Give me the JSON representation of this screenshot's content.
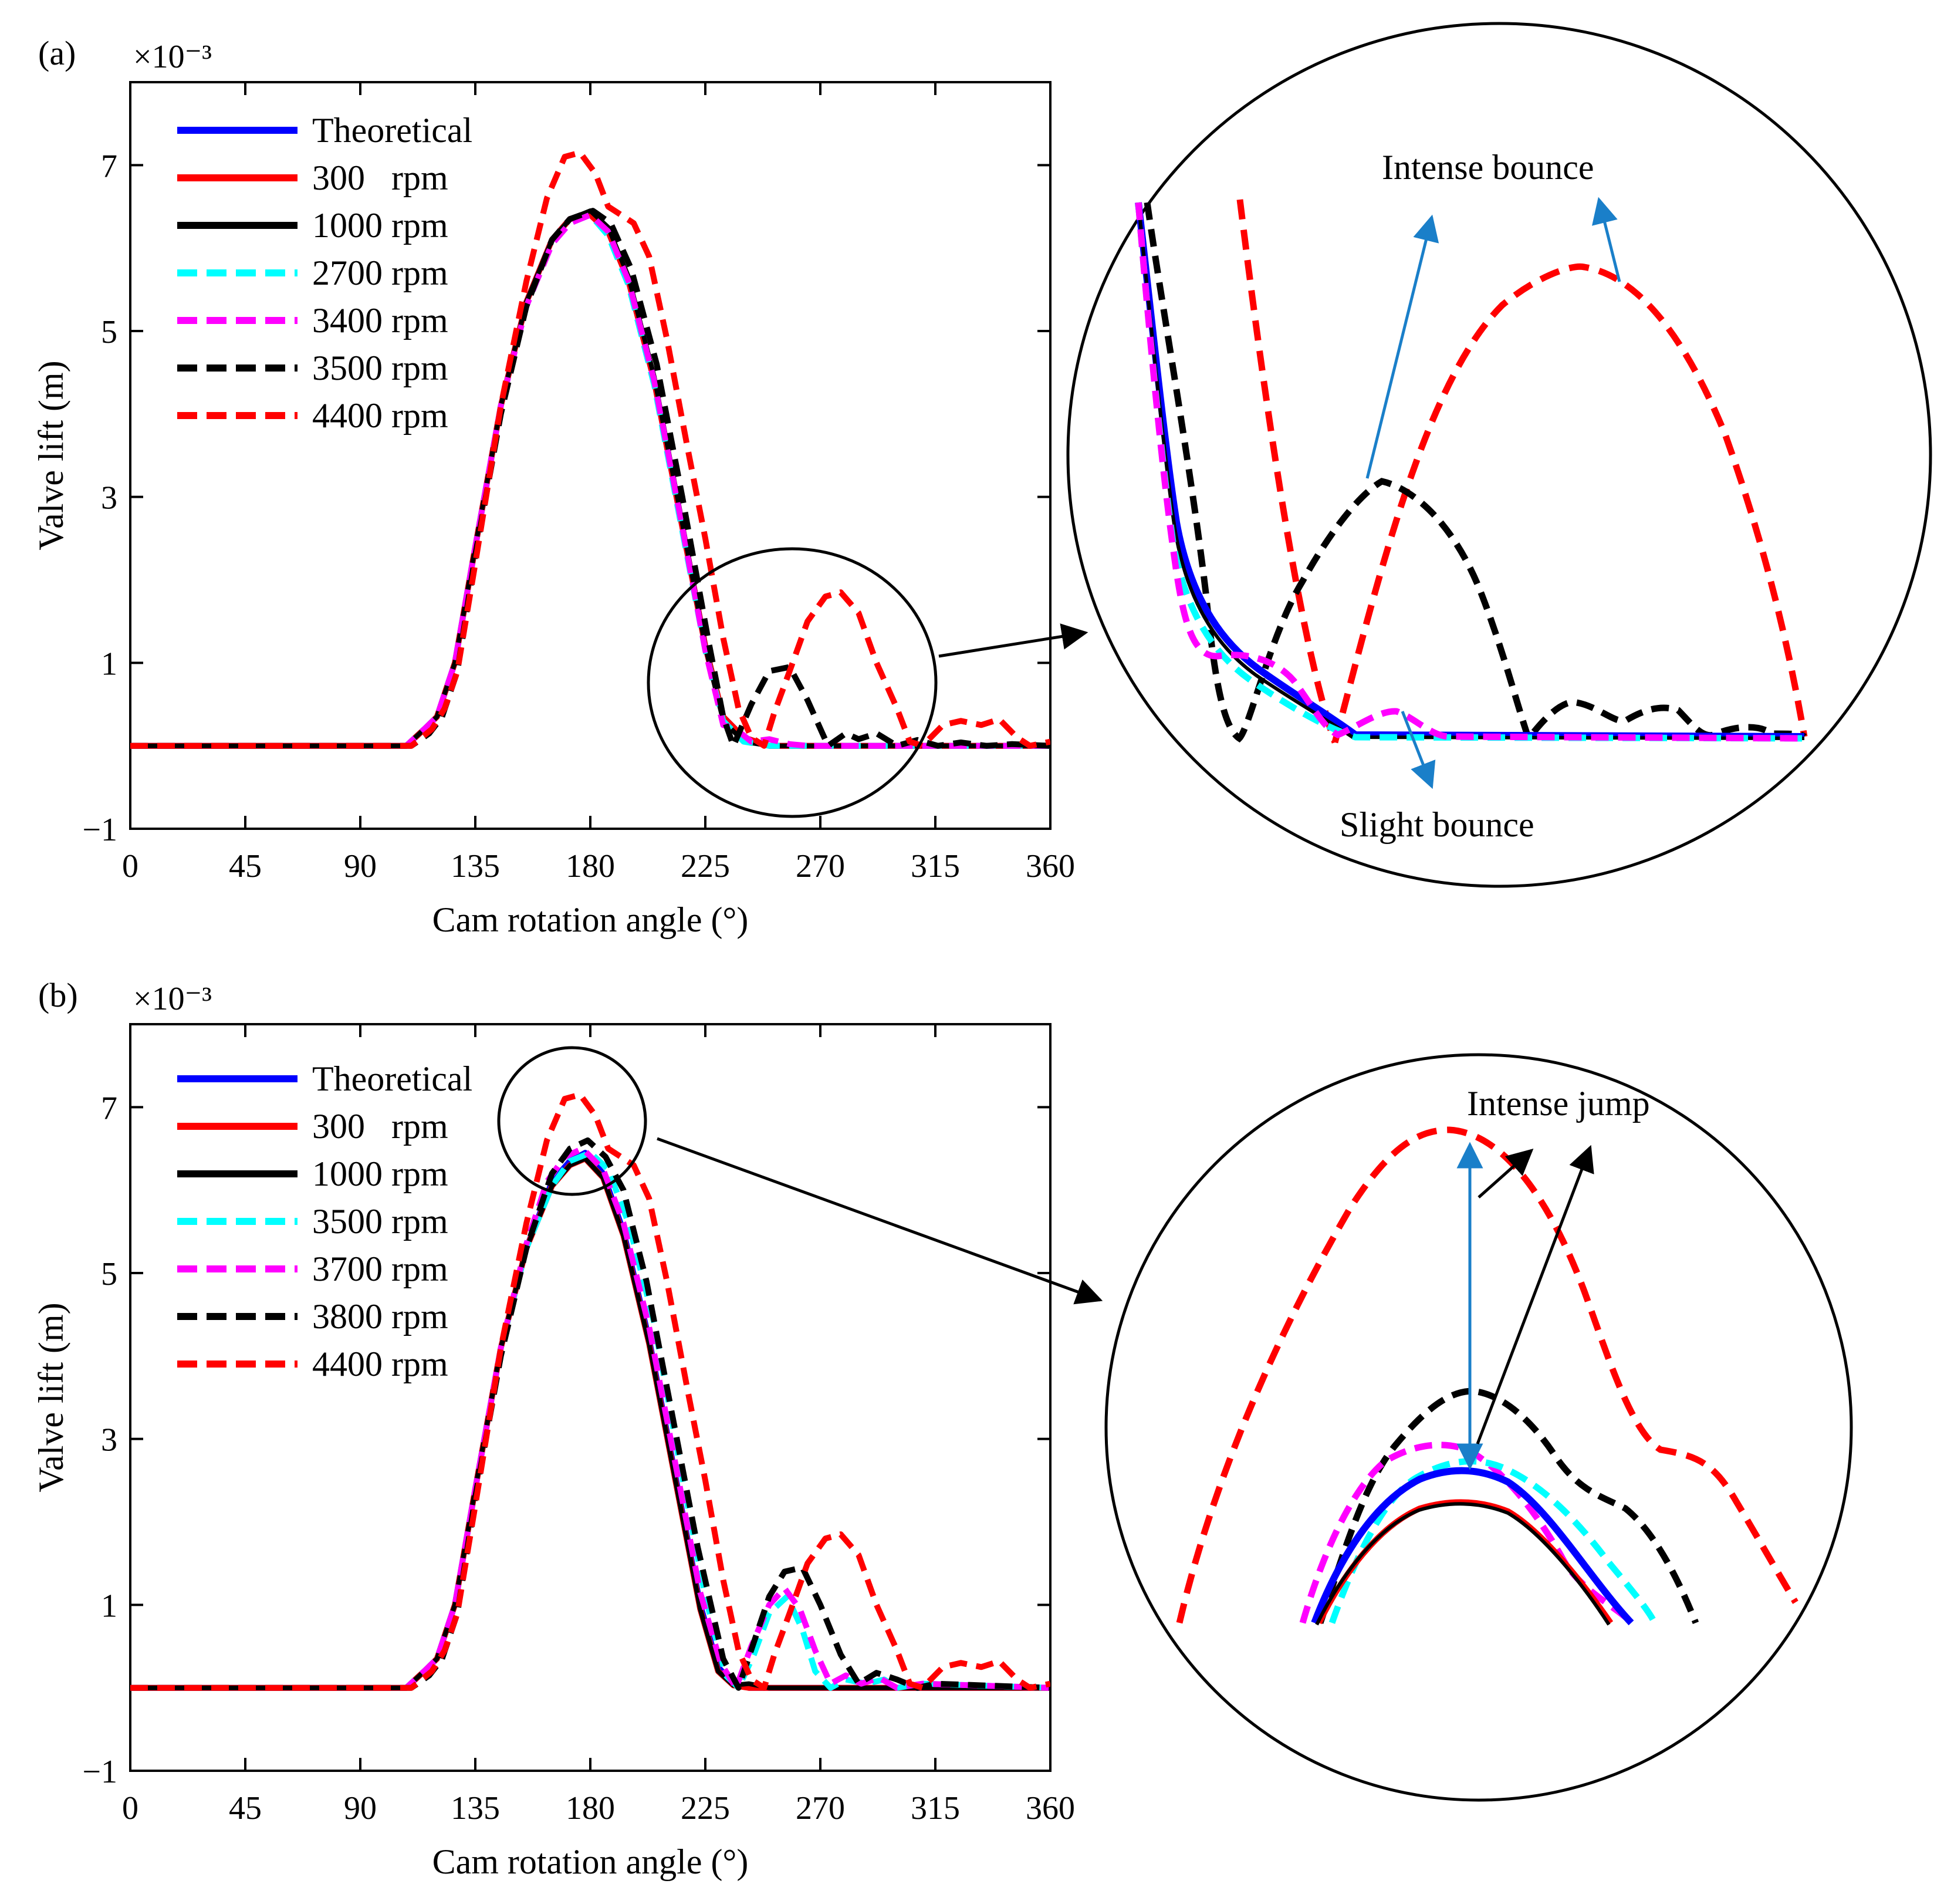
{
  "chart_data": [
    {
      "type": "line",
      "panel_label": "(a)",
      "xlabel": "Cam rotation angle (°)",
      "ylabel": "Valve lift (m)",
      "y_exponent": "×10⁻³",
      "xlim": [
        0,
        360
      ],
      "ylim": [
        -1,
        8
      ],
      "x_ticks": [
        "0",
        "45",
        "90",
        "135",
        "180",
        "225",
        "270",
        "315",
        "360"
      ],
      "y_ticks": [
        "−1",
        "1",
        "3",
        "5",
        "7"
      ],
      "x_tick_values": [
        0,
        45,
        90,
        135,
        180,
        225,
        270,
        315,
        360
      ],
      "y_tick_values": [
        -1,
        1,
        3,
        5,
        7
      ],
      "grid": false,
      "legend_position": "top-left",
      "series": [
        {
          "name": "Theoretical",
          "color": "#0000ff",
          "dash": "solid",
          "x": [
            0,
            108,
            115,
            120,
            127,
            135,
            145,
            155,
            165,
            172,
            180,
            187,
            195,
            205,
            215,
            225,
            232,
            240,
            250,
            360
          ],
          "y": [
            0,
            0,
            0.2,
            0.35,
            1.0,
            2.4,
            4.1,
            5.35,
            6.1,
            6.35,
            6.4,
            6.2,
            5.6,
            4.4,
            2.8,
            1.2,
            0.35,
            0.1,
            0,
            0
          ]
        },
        {
          "name": "300   rpm",
          "color": "#ff0000",
          "dash": "solid",
          "x": [
            0,
            108,
            115,
            120,
            127,
            135,
            145,
            155,
            165,
            172,
            180,
            187,
            195,
            205,
            215,
            225,
            232,
            240,
            250,
            360
          ],
          "y": [
            0,
            0,
            0.2,
            0.35,
            1.0,
            2.4,
            4.1,
            5.35,
            6.1,
            6.35,
            6.4,
            6.2,
            5.6,
            4.4,
            2.8,
            1.2,
            0.35,
            0.1,
            0,
            0
          ]
        },
        {
          "name": "1000 rpm",
          "color": "#000000",
          "dash": "solid",
          "x": [
            0,
            108,
            115,
            120,
            127,
            135,
            145,
            155,
            165,
            172,
            180,
            187,
            195,
            205,
            215,
            225,
            232,
            240,
            250,
            360
          ],
          "y": [
            0,
            0,
            0.2,
            0.35,
            1.0,
            2.4,
            4.1,
            5.35,
            6.1,
            6.35,
            6.45,
            6.25,
            5.65,
            4.45,
            2.85,
            1.2,
            0.3,
            0.05,
            0,
            0
          ]
        },
        {
          "name": "2700 rpm",
          "color": "#00ffff",
          "dash": "dash",
          "x": [
            0,
            108,
            115,
            120,
            127,
            135,
            145,
            155,
            165,
            172,
            180,
            187,
            195,
            205,
            215,
            225,
            232,
            240,
            250,
            360
          ],
          "y": [
            0,
            0,
            0.2,
            0.35,
            1.0,
            2.4,
            4.1,
            5.3,
            6.05,
            6.3,
            6.4,
            6.15,
            5.55,
            4.35,
            2.75,
            1.15,
            0.3,
            0.05,
            0,
            0
          ]
        },
        {
          "name": "3400 rpm",
          "color": "#ff00ff",
          "dash": "dash",
          "x": [
            0,
            108,
            115,
            120,
            127,
            135,
            145,
            155,
            165,
            172,
            180,
            187,
            195,
            205,
            215,
            225,
            232,
            237,
            243,
            250,
            258,
            265,
            360
          ],
          "y": [
            0,
            0,
            0.2,
            0.35,
            1.0,
            2.4,
            4.1,
            5.3,
            6.05,
            6.3,
            6.4,
            6.2,
            5.6,
            4.4,
            2.8,
            1.15,
            0.25,
            0.2,
            0.05,
            0.08,
            0.02,
            0,
            0
          ]
        },
        {
          "name": "3500 rpm",
          "color": "#000000",
          "dash": "dash",
          "x": [
            0,
            110,
            117,
            122,
            128,
            135,
            145,
            155,
            165,
            172,
            181,
            188,
            196,
            206,
            216,
            226,
            232,
            236,
            243,
            250,
            258,
            265,
            273,
            280,
            285,
            292,
            300,
            308,
            316,
            325,
            335,
            345,
            360
          ],
          "y": [
            0,
            0,
            0.15,
            0.35,
            0.9,
            2.3,
            4.0,
            5.3,
            6.1,
            6.35,
            6.45,
            6.3,
            5.75,
            4.6,
            3.0,
            1.3,
            0.35,
            0.0,
            0.5,
            0.9,
            0.95,
            0.55,
            0.0,
            0.15,
            0.08,
            0.15,
            0.0,
            0.07,
            0.0,
            0.04,
            0.0,
            0.02,
            0
          ]
        },
        {
          "name": "4400 rpm",
          "color": "#ff0000",
          "dash": "dash",
          "x": [
            0,
            110,
            118,
            123,
            128,
            135,
            145,
            155,
            163,
            170,
            176,
            182,
            187,
            192,
            197,
            203,
            210,
            218,
            225,
            232,
            238,
            243,
            248,
            252,
            258,
            265,
            272,
            278,
            285,
            292,
            300,
            305,
            310,
            318,
            325,
            333,
            340,
            347,
            352,
            360
          ],
          "y": [
            0,
            0,
            0.2,
            0.45,
            0.9,
            2.2,
            4.1,
            5.6,
            6.6,
            7.1,
            7.15,
            6.9,
            6.5,
            6.4,
            6.3,
            5.9,
            4.9,
            3.6,
            2.5,
            1.3,
            0.45,
            0.1,
            0.0,
            0.4,
            0.9,
            1.5,
            1.8,
            1.85,
            1.6,
            1.0,
            0.45,
            0.05,
            0.0,
            0.25,
            0.3,
            0.25,
            0.32,
            0.1,
            0.0,
            0.05
          ]
        }
      ],
      "inset": {
        "annotations": [
          "Intense bounce",
          "Slight bounce"
        ]
      }
    },
    {
      "type": "line",
      "panel_label": "(b)",
      "xlabel": "Cam rotation angle (°)",
      "ylabel": "Valve lift (m)",
      "y_exponent": "×10⁻³",
      "xlim": [
        0,
        360
      ],
      "ylim": [
        -1,
        8
      ],
      "x_ticks": [
        "0",
        "45",
        "90",
        "135",
        "180",
        "225",
        "270",
        "315",
        "360"
      ],
      "y_ticks": [
        "−1",
        "1",
        "3",
        "5",
        "7"
      ],
      "x_tick_values": [
        0,
        45,
        90,
        135,
        180,
        225,
        270,
        315,
        360
      ],
      "y_tick_values": [
        -1,
        1,
        3,
        5,
        7
      ],
      "grid": false,
      "legend_position": "top-left",
      "series": [
        {
          "name": "Theoretical",
          "color": "#0000ff",
          "dash": "solid",
          "x": [
            0,
            108,
            115,
            120,
            127,
            135,
            145,
            155,
            165,
            172,
            178,
            185,
            193,
            203,
            213,
            223,
            230,
            236,
            242,
            360
          ],
          "y": [
            0,
            0,
            0.2,
            0.35,
            1.0,
            2.4,
            4.1,
            5.3,
            6.1,
            6.35,
            6.45,
            6.2,
            5.5,
            4.2,
            2.6,
            1.0,
            0.25,
            0.05,
            0,
            0
          ]
        },
        {
          "name": "300   rpm",
          "color": "#ff0000",
          "dash": "solid",
          "x": [
            0,
            108,
            115,
            120,
            127,
            135,
            145,
            155,
            165,
            172,
            178,
            185,
            193,
            203,
            213,
            223,
            230,
            236,
            242,
            360
          ],
          "y": [
            0,
            0,
            0.2,
            0.35,
            1.0,
            2.4,
            4.1,
            5.3,
            6.05,
            6.3,
            6.38,
            6.15,
            5.45,
            4.15,
            2.55,
            0.95,
            0.2,
            0.03,
            0,
            0
          ]
        },
        {
          "name": "1000 rpm",
          "color": "#000000",
          "dash": "solid",
          "x": [
            0,
            108,
            115,
            120,
            127,
            135,
            145,
            155,
            165,
            172,
            178,
            185,
            193,
            203,
            213,
            223,
            230,
            236,
            242,
            250,
            360
          ],
          "y": [
            0,
            0,
            0.2,
            0.35,
            1.0,
            2.4,
            4.1,
            5.3,
            6.05,
            6.3,
            6.38,
            6.15,
            5.45,
            4.15,
            2.55,
            0.95,
            0.2,
            0.03,
            0.05,
            0,
            0
          ]
        },
        {
          "name": "3500 rpm",
          "color": "#00ffff",
          "dash": "dash",
          "x": [
            0,
            108,
            115,
            120,
            127,
            135,
            145,
            155,
            165,
            172,
            180,
            187,
            195,
            205,
            215,
            225,
            233,
            238,
            244,
            250,
            257,
            263,
            268,
            274,
            280,
            288,
            295,
            300,
            310,
            360
          ],
          "y": [
            0,
            0,
            0.2,
            0.35,
            1.0,
            2.4,
            4.1,
            5.3,
            6.05,
            6.35,
            6.45,
            6.25,
            5.6,
            4.4,
            2.7,
            1.1,
            0.15,
            0.0,
            0.4,
            0.9,
            1.1,
            0.7,
            0.2,
            0.0,
            0.1,
            0.05,
            0.1,
            0.0,
            0.05,
            0
          ]
        },
        {
          "name": "3700 rpm",
          "color": "#ff00ff",
          "dash": "dash",
          "x": [
            0,
            108,
            115,
            120,
            127,
            135,
            145,
            155,
            163,
            170,
            177,
            185,
            193,
            203,
            213,
            223,
            231,
            237,
            243,
            250,
            256,
            262,
            268,
            274,
            280,
            286,
            293,
            300,
            310,
            360
          ],
          "y": [
            0,
            0,
            0.2,
            0.35,
            1.0,
            2.4,
            4.1,
            5.35,
            6.1,
            6.4,
            6.5,
            6.25,
            5.6,
            4.35,
            2.75,
            1.15,
            0.3,
            0.0,
            0.5,
            1.0,
            1.2,
            0.95,
            0.45,
            0.05,
            0.15,
            0.05,
            0.12,
            0.0,
            0.05,
            0
          ]
        },
        {
          "name": "3800 rpm",
          "color": "#000000",
          "dash": "dash",
          "x": [
            0,
            110,
            117,
            122,
            128,
            135,
            145,
            155,
            165,
            172,
            179,
            186,
            193,
            202,
            212,
            222,
            232,
            238,
            244,
            250,
            256,
            263,
            270,
            278,
            285,
            292,
            300,
            308,
            315,
            360
          ],
          "y": [
            0,
            0,
            0.15,
            0.35,
            0.9,
            2.3,
            4.0,
            5.3,
            6.2,
            6.5,
            6.6,
            6.4,
            6.0,
            4.9,
            3.3,
            1.7,
            0.35,
            0.0,
            0.55,
            1.1,
            1.4,
            1.45,
            1.0,
            0.4,
            0.05,
            0.18,
            0.1,
            0.0,
            0.05,
            0
          ]
        },
        {
          "name": "4400 rpm",
          "color": "#ff0000",
          "dash": "dash",
          "x": [
            0,
            110,
            118,
            123,
            128,
            135,
            145,
            155,
            163,
            170,
            176,
            182,
            187,
            192,
            197,
            203,
            210,
            218,
            225,
            232,
            238,
            243,
            248,
            252,
            258,
            265,
            272,
            278,
            285,
            292,
            300,
            305,
            310,
            318,
            325,
            333,
            340,
            347,
            352,
            360
          ],
          "y": [
            0,
            0,
            0.2,
            0.45,
            0.9,
            2.2,
            4.1,
            5.6,
            6.6,
            7.1,
            7.15,
            6.9,
            6.5,
            6.4,
            6.3,
            5.9,
            4.9,
            3.6,
            2.5,
            1.3,
            0.45,
            0.1,
            0.0,
            0.4,
            0.9,
            1.5,
            1.8,
            1.85,
            1.6,
            1.0,
            0.45,
            0.05,
            0.0,
            0.25,
            0.3,
            0.25,
            0.32,
            0.1,
            0.0,
            0.05
          ]
        }
      ],
      "inset": {
        "annotations": [
          "Intense jump"
        ]
      }
    }
  ]
}
